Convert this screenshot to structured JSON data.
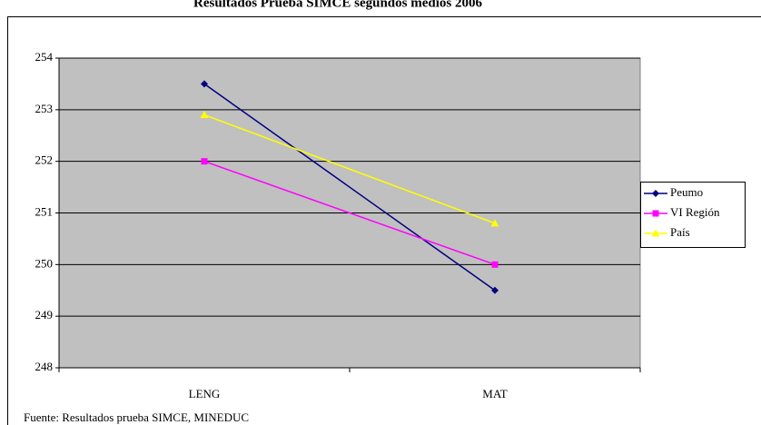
{
  "chart_data": {
    "type": "line",
    "title": "Resultados Prueba SIMCE segundos medios 2006",
    "categories": [
      "LENG",
      "MAT"
    ],
    "series": [
      {
        "name": "Peumo",
        "color": "#000080",
        "marker": "diamond",
        "values": [
          253.5,
          249.5
        ]
      },
      {
        "name": "VI Región",
        "color": "#ff00ff",
        "marker": "square",
        "values": [
          252,
          250
        ]
      },
      {
        "name": "País",
        "color": "#ffff00",
        "marker": "triangle",
        "values": [
          252.9,
          250.8
        ]
      }
    ],
    "ylim": [
      248,
      254
    ],
    "yticks": [
      248,
      249,
      250,
      251,
      252,
      253,
      254
    ],
    "grid": true,
    "legend": "right",
    "source": "Fuente: Resultados prueba SIMCE, MINEDUC"
  }
}
